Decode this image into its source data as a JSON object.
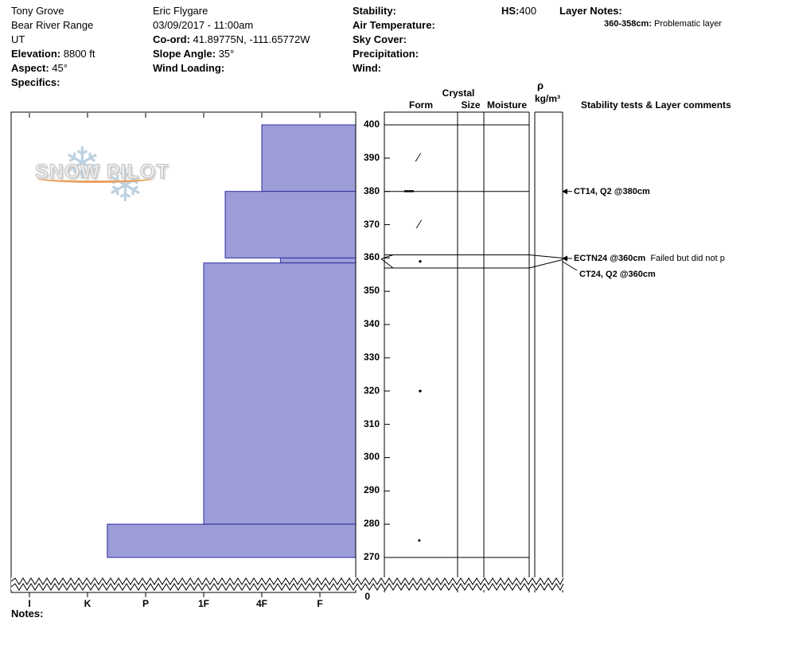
{
  "header": {
    "site": {
      "name": "Tony Grove",
      "range": "Bear River Range",
      "state": "UT",
      "elevation_label": "Elevation:",
      "elevation_value": " 8800 ft",
      "aspect_label": "Aspect:",
      "aspect_value": " 45°",
      "specifics_label": "Specifics:"
    },
    "observer": {
      "name": "Eric Flygare",
      "datetime": "03/09/2017 - 11:00am",
      "coord_label": "Co-ord:",
      "coord_value": " 41.89775N, -111.65772W",
      "slope_label": "Slope Angle:",
      "slope_value": " 35°",
      "wind_loading_label": "Wind Loading:"
    },
    "weather": {
      "stability_label": "Stability:",
      "air_temp_label": "Air Temperature:",
      "sky_label": "Sky Cover:",
      "precip_label": "Precipitation:",
      "wind_label": "Wind:"
    },
    "hs_label": "HS:",
    "hs_value": "400",
    "layer_notes_label": "Layer Notes:",
    "layer_note_depth": "360-358cm:",
    "layer_note_text": " Problematic layer"
  },
  "column_headers": {
    "crystal": "Crystal",
    "form": "Form",
    "size": "Size",
    "moisture": "Moisture",
    "density_symbol": "ρ",
    "density_units": "kg/m³",
    "stability_tests": "Stability tests & Layer comments"
  },
  "watermark": {
    "text": "SNOW PILOT",
    "snowflake": "❄"
  },
  "notes_label": "Notes:",
  "chart_data": {
    "type": "bar",
    "subtype": "snow-hardness-profile",
    "hs_cm": 400,
    "depth_ticks": [
      400,
      390,
      380,
      370,
      360,
      350,
      340,
      330,
      320,
      310,
      300,
      290,
      280,
      270
    ],
    "depth_axis_break_label": "0",
    "hardness_categories": [
      "I",
      "K",
      "P",
      "1F",
      "4F",
      "F"
    ],
    "layers": [
      {
        "top_cm": 400,
        "bottom_cm": 380,
        "hardness": "4F",
        "hardness_index": 4.0
      },
      {
        "top_cm": 380,
        "bottom_cm": 360,
        "hardness": "1F+",
        "hardness_index": 3.37
      },
      {
        "top_cm": 360,
        "bottom_cm": 358.5,
        "hardness": "4F+",
        "hardness_index": 4.32
      },
      {
        "top_cm": 358.5,
        "bottom_cm": 280,
        "hardness": "1F",
        "hardness_index": 3.0
      },
      {
        "top_cm": 280,
        "bottom_cm": 270,
        "hardness": "P-",
        "hardness_index": 1.34
      }
    ],
    "grain_symbols": [
      {
        "depth_cm": 390,
        "glyph": "∕",
        "name": "decomposing-fragments"
      },
      {
        "depth_cm": 380,
        "glyph": "—",
        "name": "dash"
      },
      {
        "depth_cm": 370,
        "glyph": "∕",
        "name": "decomposing-fragments"
      },
      {
        "depth_cm": 359,
        "glyph": "●",
        "name": "rounded-grains"
      },
      {
        "depth_cm": 320,
        "glyph": "●",
        "name": "rounded-grains"
      },
      {
        "depth_cm": 275,
        "glyph": "▪",
        "name": "faceted-crystals"
      }
    ],
    "stability_tests": [
      {
        "depth_cm": 380,
        "label": "CT14, Q2 @380cm",
        "comment": ""
      },
      {
        "depth_cm": 360,
        "label": "ECTN24 @360cm",
        "comment": "  Failed but did not p"
      },
      {
        "depth_cm": 360,
        "label": "CT24, Q2 @360cm",
        "comment": ""
      }
    ],
    "colors": {
      "bar_fill": "#9c9cd8",
      "bar_border": "#2e2ea0",
      "line": "#000000"
    }
  }
}
